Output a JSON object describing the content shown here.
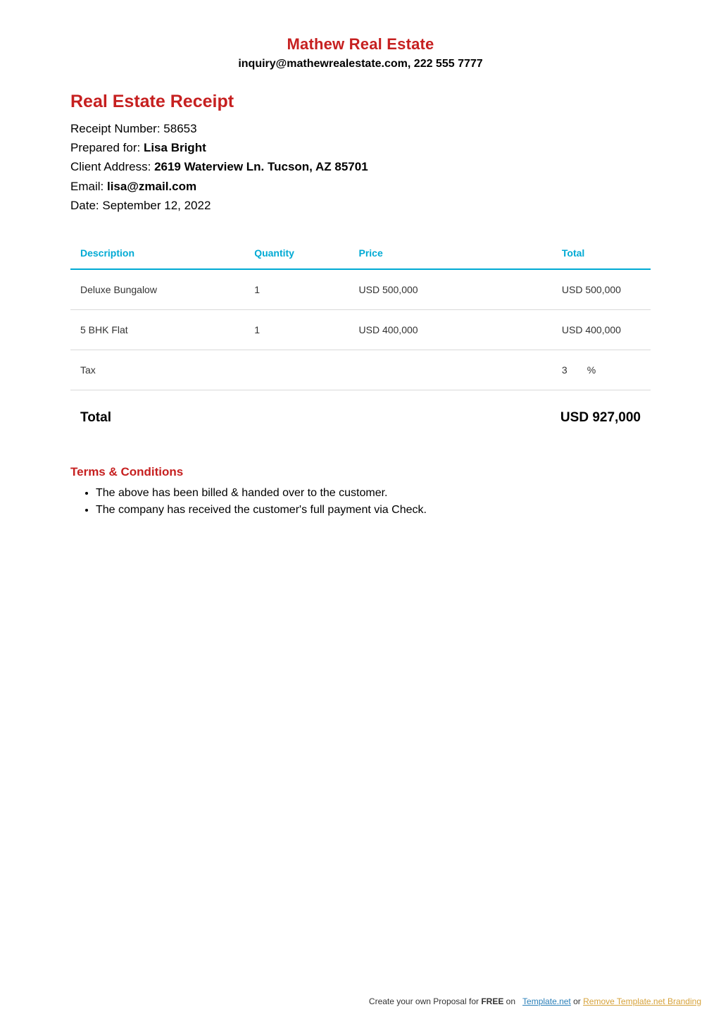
{
  "header": {
    "company_name": "Mathew Real Estate",
    "contact_line": "inquiry@mathewrealestate.com, 222 555 7777"
  },
  "document": {
    "title": "Real Estate Receipt",
    "receipt_number_label": "Receipt Number: ",
    "receipt_number": "58653",
    "prepared_for_label": "Prepared for: ",
    "prepared_for": "Lisa Bright",
    "client_address_label": "Client Address: ",
    "client_address": "2619 Waterview Ln. Tucson, AZ 85701",
    "email_label": "Email: ",
    "email": "lisa@zmail.com",
    "date_label": "Date: ",
    "date": "September 12, 2022"
  },
  "table": {
    "columns": {
      "description": "Description",
      "quantity": "Quantity",
      "price": "Price",
      "total": "Total"
    },
    "rows": [
      {
        "description": "Deluxe Bungalow",
        "quantity": "1",
        "price": "USD 500,000",
        "total": "USD 500,000"
      },
      {
        "description": "5 BHK Flat",
        "quantity": "1",
        "price": "USD 400,000",
        "total": "USD 400,000"
      }
    ],
    "tax": {
      "label": "Tax",
      "value": "3",
      "unit": "%"
    },
    "grand_total_label": "Total",
    "grand_total_value": "USD 927,000"
  },
  "terms": {
    "heading": "Terms & Conditions",
    "items": [
      "The above has been billed & handed over to the customer.",
      "The company has received the customer's full payment via Check."
    ]
  },
  "footer": {
    "prefix": "Create your own Proposal for ",
    "free": "FREE",
    "on": " on",
    "link1": "Template.net",
    "or": " or ",
    "link2": "Remove Template.net Branding"
  },
  "style": {
    "accent_color": "#c62020",
    "table_header_color": "#00aad4",
    "background_color": "#ffffff",
    "row_border_color": "#d9d9d9",
    "link1_color": "#2a7fb8",
    "link2_color": "#d6a23a"
  }
}
